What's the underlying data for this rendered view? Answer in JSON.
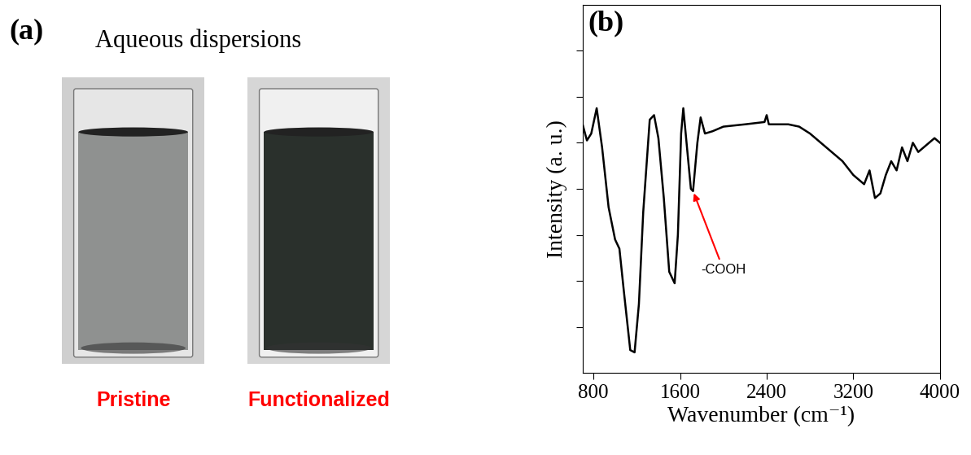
{
  "panel_a": {
    "label": "(a)",
    "title": "Aqueous dispersions",
    "samples": [
      {
        "name": "Pristine"
      },
      {
        "name": "Functionalized"
      }
    ]
  },
  "chart_data": {
    "type": "line",
    "title": "(b)",
    "x_label": "Wavenumber (cm⁻¹)",
    "y_label": "Intensity (a. u.)",
    "x": [
      700,
      740,
      780,
      830,
      880,
      940,
      1000,
      1040,
      1080,
      1140,
      1180,
      1220,
      1260,
      1320,
      1360,
      1400,
      1450,
      1500,
      1550,
      1580,
      1610,
      1630,
      1660,
      1700,
      1720,
      1760,
      1790,
      1830,
      1900,
      2000,
      2200,
      2380,
      2400,
      2420,
      2600,
      2700,
      2800,
      2900,
      3000,
      3100,
      3200,
      3300,
      3350,
      3400,
      3450,
      3500,
      3550,
      3600,
      3650,
      3700,
      3750,
      3800,
      3900,
      3950,
      4000
    ],
    "values": [
      5.4,
      5.05,
      5.2,
      5.75,
      4.9,
      3.6,
      2.9,
      2.7,
      1.8,
      0.5,
      0.45,
      1.5,
      3.5,
      5.5,
      5.6,
      5.1,
      3.8,
      2.2,
      1.95,
      3.0,
      5.2,
      5.75,
      5.0,
      4.0,
      3.95,
      5.0,
      5.55,
      5.2,
      5.25,
      5.35,
      5.4,
      5.45,
      5.6,
      5.4,
      5.4,
      5.35,
      5.2,
      5.0,
      4.8,
      4.6,
      4.3,
      4.1,
      4.4,
      3.8,
      3.9,
      4.3,
      4.6,
      4.4,
      4.9,
      4.6,
      5.0,
      4.8,
      5.0,
      5.1,
      5.0
    ],
    "color": "#000000",
    "xlim": [
      700,
      4000
    ],
    "xticks": [
      800,
      1600,
      2400,
      3200,
      4000
    ],
    "ylim": [
      0,
      8
    ],
    "yticks": [
      1,
      2,
      3,
      4,
      5,
      6,
      7
    ],
    "tick_labels": "x",
    "grid": false,
    "annotations": [
      {
        "text": "-COOH",
        "x": 1720,
        "y": 3.95,
        "color": "#ff0000"
      }
    ]
  }
}
